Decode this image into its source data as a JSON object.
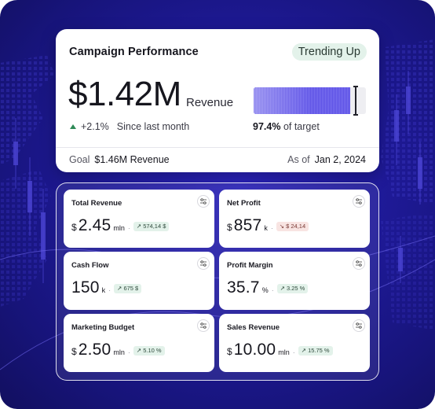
{
  "header": {
    "title": "Campaign Performance",
    "trend_badge": "Trending Up"
  },
  "summary": {
    "value": "$1.42M",
    "unit": "Revenue",
    "delta_arrow": "triangle-up-icon",
    "delta": "+2.1%",
    "delta_context": "Since last month",
    "progress_fraction": 0.974,
    "target_percent": "97.4%",
    "target_label": "of target",
    "goal_label": "Goal",
    "goal_value": "$1.46M Revenue",
    "asof_label": "As of",
    "asof_value": "Jan 2, 2024"
  },
  "colors": {
    "accent": "#6a60ea",
    "background": "#1f1a9a",
    "positive": "#2e8a57",
    "negative": "#b5473f"
  },
  "metrics": [
    {
      "title": "Total Revenue",
      "prefix": "$",
      "value": "2.45",
      "unit": "mln",
      "badge": "574,14 $",
      "trend": "up",
      "icon": "filter-sliders-icon"
    },
    {
      "title": "Net Profit",
      "prefix": "$",
      "value": "857",
      "unit": "k",
      "badge": "$ 24,14",
      "trend": "down",
      "icon": "filter-sliders-icon"
    },
    {
      "title": "Cash Flow",
      "prefix": "",
      "value": "150",
      "unit": "k",
      "badge": "675 $",
      "trend": "up",
      "icon": "filter-sliders-icon"
    },
    {
      "title": "Profit Margin",
      "prefix": "",
      "value": "35.7",
      "unit": "%",
      "badge": "3.25 %",
      "trend": "up",
      "icon": "filter-sliders-icon"
    },
    {
      "title": "Marketing Budget",
      "prefix": "$",
      "value": "2.50",
      "unit": "mln",
      "badge": "5.10 %",
      "trend": "up",
      "icon": "filter-sliders-icon"
    },
    {
      "title": "Sales Revenue",
      "prefix": "$",
      "value": "10.00",
      "unit": "mln",
      "badge": "15.75 %",
      "trend": "up",
      "icon": "filter-sliders-icon"
    }
  ]
}
